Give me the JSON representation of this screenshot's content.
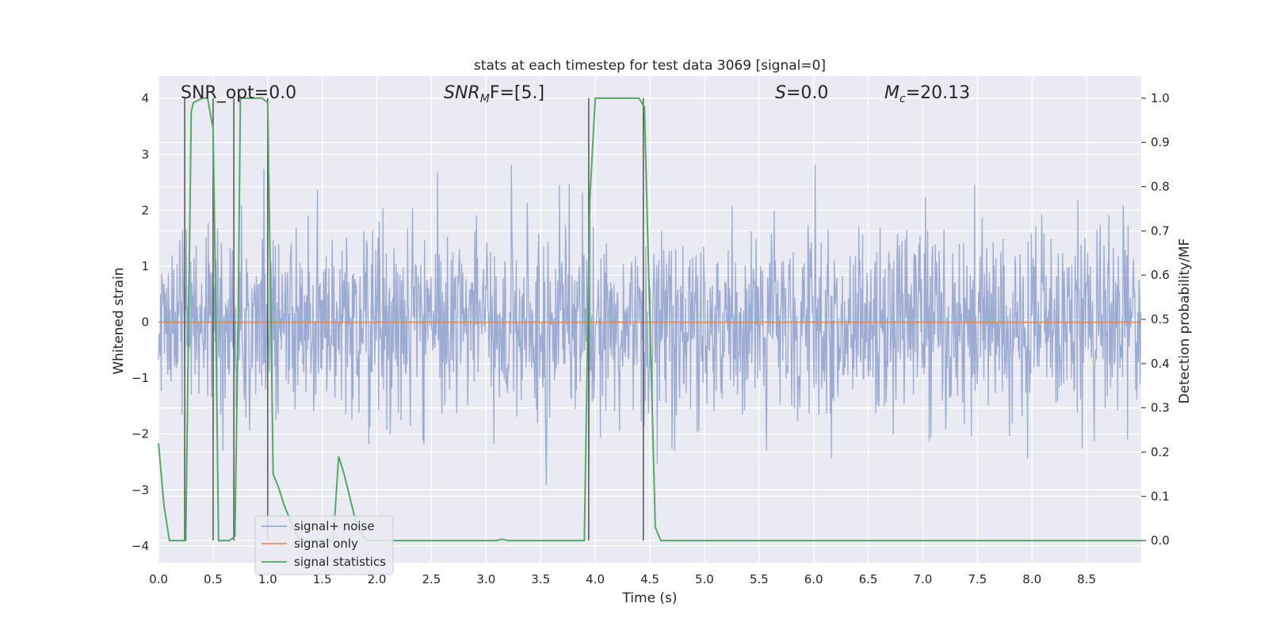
{
  "chart_data": {
    "type": "line",
    "title": "stats at each timestep for test data 3069 [signal=0]",
    "xlabel": "Time (s)",
    "ylabel": "Whitened strain",
    "ylabel_right": "Detection probability/MF",
    "xlim": [
      0.0,
      9.0
    ],
    "ylim": [
      -4.3,
      4.4
    ],
    "ylim_right": [
      -0.05,
      1.05
    ],
    "x_ticks": [
      "0.0",
      "0.5",
      "1.0",
      "1.5",
      "2.0",
      "2.5",
      "3.0",
      "3.5",
      "4.0",
      "4.5",
      "5.0",
      "5.5",
      "6.0",
      "6.5",
      "7.0",
      "7.5",
      "8.0",
      "8.5"
    ],
    "y_ticks": [
      "4",
      "3",
      "2",
      "1",
      "0",
      "−1",
      "−2",
      "−3",
      "−4"
    ],
    "y_ticks_right": [
      "1.0",
      "0.9",
      "0.8",
      "0.7",
      "0.6",
      "0.5",
      "0.4",
      "0.3",
      "0.2",
      "0.1",
      "0.0"
    ],
    "grid": true,
    "legend_position": "lower-left",
    "annotations": {
      "snr_opt": "SNR_opt=0.0",
      "snr_mf_main": "SNR",
      "snr_mf_sub": "M",
      "snr_mf_rest": "F=[5.]",
      "s_main": "S",
      "s_rest": "=0.0",
      "mc_main": "M",
      "mc_sub": "c",
      "mc_rest": "=20.13"
    },
    "series": [
      {
        "name": "signal+ noise",
        "color": "#8da0cb",
        "description_values": "whitened strain noise, amplitude within about ±2 with spikes to ±3.8",
        "envelope_x": [
          0.0,
          9.0
        ],
        "typical_abs": 1.9,
        "max_abs": 3.9
      },
      {
        "name": "signal only",
        "color": "#dd8452",
        "values_constant": 0.0
      },
      {
        "name": "signal statistics",
        "color": "#55a868",
        "x": [
          0.0,
          0.05,
          0.1,
          0.25,
          0.3,
          0.32,
          0.4,
          0.45,
          0.5,
          0.52,
          0.55,
          0.6,
          0.65,
          0.7,
          0.73,
          0.75,
          0.8,
          0.95,
          1.0,
          1.03,
          1.05,
          1.1,
          1.15,
          1.2,
          1.25,
          1.3,
          1.35,
          1.4,
          1.45,
          1.5,
          1.55,
          1.6,
          1.65,
          1.7,
          1.75,
          1.8,
          1.85,
          1.9,
          2.0,
          2.3,
          3.1,
          3.15,
          3.2,
          3.9,
          3.95,
          4.0,
          4.4,
          4.45,
          4.55,
          4.6,
          5.0,
          9.0
        ],
        "values": [
          0.22,
          0.08,
          0.0,
          0.0,
          0.97,
          0.99,
          1.0,
          1.0,
          0.93,
          0.6,
          0.0,
          0.0,
          0.0,
          0.01,
          0.5,
          1.0,
          1.0,
          1.0,
          0.99,
          0.5,
          0.15,
          0.12,
          0.08,
          0.05,
          0.02,
          0.0,
          0.0,
          0.0,
          0.0,
          0.0,
          0.0,
          0.0,
          0.19,
          0.15,
          0.1,
          0.05,
          0.02,
          0.0,
          0.0,
          0.0,
          0.0,
          0.003,
          0.0,
          0.0,
          0.77,
          1.0,
          1.0,
          0.98,
          0.03,
          0.0,
          0.0,
          0.0
        ]
      }
    ],
    "vertical_lines_x": [
      0.24,
      0.5,
      0.69,
      1.0,
      3.94,
      4.44
    ]
  }
}
